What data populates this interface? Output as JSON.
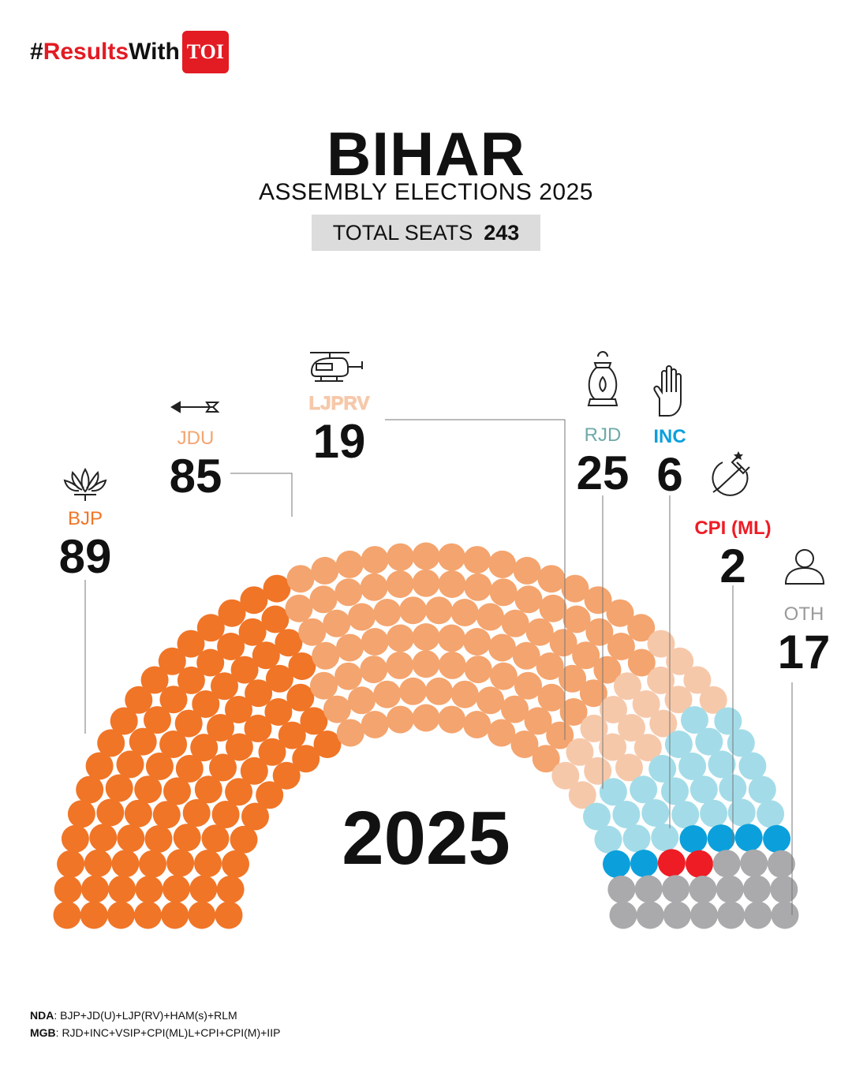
{
  "brand": {
    "hash": "#",
    "results": "Results",
    "with": "With",
    "toi": "TOI"
  },
  "title": "BIHAR",
  "subtitle": "ASSEMBLY ELECTIONS 2025",
  "total_seats": {
    "label": "TOTAL SEATS",
    "value": "243"
  },
  "year": "2025",
  "legend": {
    "nda_label": "NDA",
    "nda_text": ": BJP+JD(U)+LJP(RV)+HAM(s)+RLM",
    "mgb_label": "MGB",
    "mgb_text": ": RJD+INC+VSIP+CPI(ML)L+CPI+CPI(M)+IIP"
  },
  "parties": [
    {
      "name": "BJP",
      "seats": "89",
      "color": "#f07527",
      "icon": "lotus-icon"
    },
    {
      "name": "JDU",
      "seats": "85",
      "color": "#f4a46e",
      "icon": "arrow-icon"
    },
    {
      "name": "LJPRV",
      "seats": "19",
      "color": "#f6c8aa",
      "icon": "helicopter-icon"
    },
    {
      "name": "RJD",
      "seats": "25",
      "color": "#a3dce8",
      "icon": "lantern-icon"
    },
    {
      "name": "INC",
      "seats": "6",
      "color": "#0ba0dc",
      "icon": "hand-icon"
    },
    {
      "name": "CPI (ML)",
      "seats": "2",
      "color": "#ee1c25",
      "icon": "hammer-sickle-icon"
    },
    {
      "name": "OTH",
      "seats": "17",
      "color": "#aaaaac",
      "icon": "person-icon"
    }
  ],
  "chart_data": {
    "type": "parliament",
    "title": "BIHAR",
    "subtitle": "ASSEMBLY ELECTIONS 2025",
    "total": 243,
    "categories": [
      "BJP",
      "JDU",
      "LJPRV",
      "RJD",
      "INC",
      "CPI (ML)",
      "OTH"
    ],
    "values": [
      89,
      85,
      19,
      25,
      6,
      2,
      17
    ],
    "colors": [
      "#f07527",
      "#f4a46e",
      "#f6c8aa",
      "#a3dce8",
      "#0ba0dc",
      "#ee1c25",
      "#aaaaac"
    ],
    "label_colors": [
      "#f07527",
      "#f4a46e",
      "#f6c8aa",
      "#6fa9a9",
      "#0ba0dc",
      "#ee1c25",
      "#9a9a9a"
    ]
  }
}
